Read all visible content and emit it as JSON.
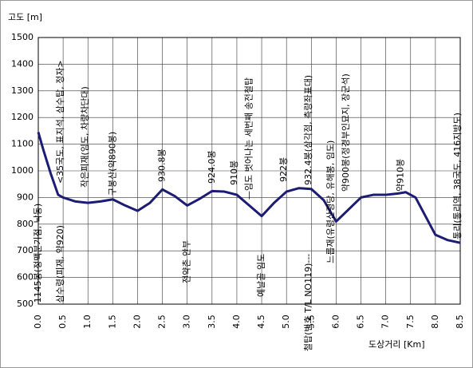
{
  "chart_data": {
    "type": "line",
    "ylabel": "고도 [m]",
    "xlabel": "도상거리 [Km]",
    "xlim": [
      0,
      8.5
    ],
    "ylim": [
      500,
      1500
    ],
    "xticks": [
      {
        "value": 0,
        "label": "0.0"
      },
      0.5,
      {
        "value": 1,
        "label": "1.0"
      },
      1.5,
      {
        "value": 2,
        "label": "2.0"
      },
      2.5,
      {
        "value": 3,
        "label": "3.0"
      },
      3.5,
      {
        "value": 4,
        "label": "4.0"
      },
      4.5,
      {
        "value": 5,
        "label": "5.0"
      },
      5.5,
      {
        "value": 6,
        "label": "6.0"
      },
      6.5,
      {
        "value": 7,
        "label": "7.0"
      },
      7.5,
      {
        "value": 8,
        "label": "8.0"
      },
      8.5
    ],
    "yticks": [
      500,
      600,
      700,
      800,
      900,
      1000,
      1100,
      1200,
      1300,
      1400,
      1500
    ],
    "grid": true,
    "series": [
      {
        "color": "#1c1c74",
        "x": [
          0,
          0.1,
          0.25,
          0.4,
          0.5,
          0.75,
          1.0,
          1.25,
          1.5,
          1.75,
          2.0,
          2.25,
          2.5,
          2.75,
          3.0,
          3.25,
          3.5,
          3.75,
          4.0,
          4.25,
          4.5,
          4.75,
          5.0,
          5.25,
          5.5,
          5.75,
          6.0,
          6.25,
          6.5,
          6.75,
          7.0,
          7.25,
          7.4,
          7.6,
          7.8,
          8.0,
          8.25,
          8.5
        ],
        "values": [
          1145,
          1080,
          990,
          910,
          900,
          885,
          880,
          885,
          893,
          870,
          850,
          880,
          930,
          905,
          870,
          895,
          924,
          922,
          910,
          870,
          830,
          880,
          922,
          935,
          932,
          890,
          810,
          855,
          900,
          910,
          910,
          915,
          920,
          900,
          830,
          760,
          740,
          730
        ]
      }
    ],
    "annotations": [
      {
        "text": "1145봉(정맥분기점, 낙동)",
        "x": 0,
        "y": 505
      },
      {
        "text": "<35국도, 표지석, 삼수탑, 정자>",
        "x": 0.45,
        "y": 952
      },
      {
        "text": "삼수령(피재, 약920)",
        "x": 0.45,
        "y": 505
      },
      {
        "text": "작은피재(임도, 차량차단대)",
        "x": 0.95,
        "y": 937
      },
      {
        "text": "구봉산(약890봉)",
        "x": 1.5,
        "y": 907
      },
      {
        "text": "930.8봉",
        "x": 2.5,
        "y": 958
      },
      {
        "text": "전약촌 안부",
        "x": 3.0,
        "y": 578
      },
      {
        "text": "924.0봉",
        "x": 3.5,
        "y": 952
      },
      {
        "text": "910봉",
        "x": 3.95,
        "y": 946
      },
      {
        "text": "—임도 벗어나는 세번째 송전철탑",
        "x": 4.25,
        "y": 892
      },
      {
        "text": "예날골 임도",
        "x": 4.5,
        "y": 527
      },
      {
        "text": "922봉",
        "x": 4.95,
        "y": 958
      },
      {
        "text": "932.4봉(삼각점, 측량좌표대)",
        "x": 5.45,
        "y": 946
      },
      {
        "text": "철탑(번호 T/L NO119)---",
        "x": 5.45,
        "y": 323
      },
      {
        "text": "느릅재(유령산령당, 유해봉, 임도)",
        "x": 5.9,
        "y": 653
      },
      {
        "text": "약900봉(정경부인묘지, 장군석)",
        "x": 6.2,
        "y": 922
      },
      {
        "text": "약910봉",
        "x": 7.3,
        "y": 922
      },
      {
        "text": "통리(통리역, 38국도, 416지방도)",
        "x": 8.45,
        "y": 743
      }
    ]
  }
}
